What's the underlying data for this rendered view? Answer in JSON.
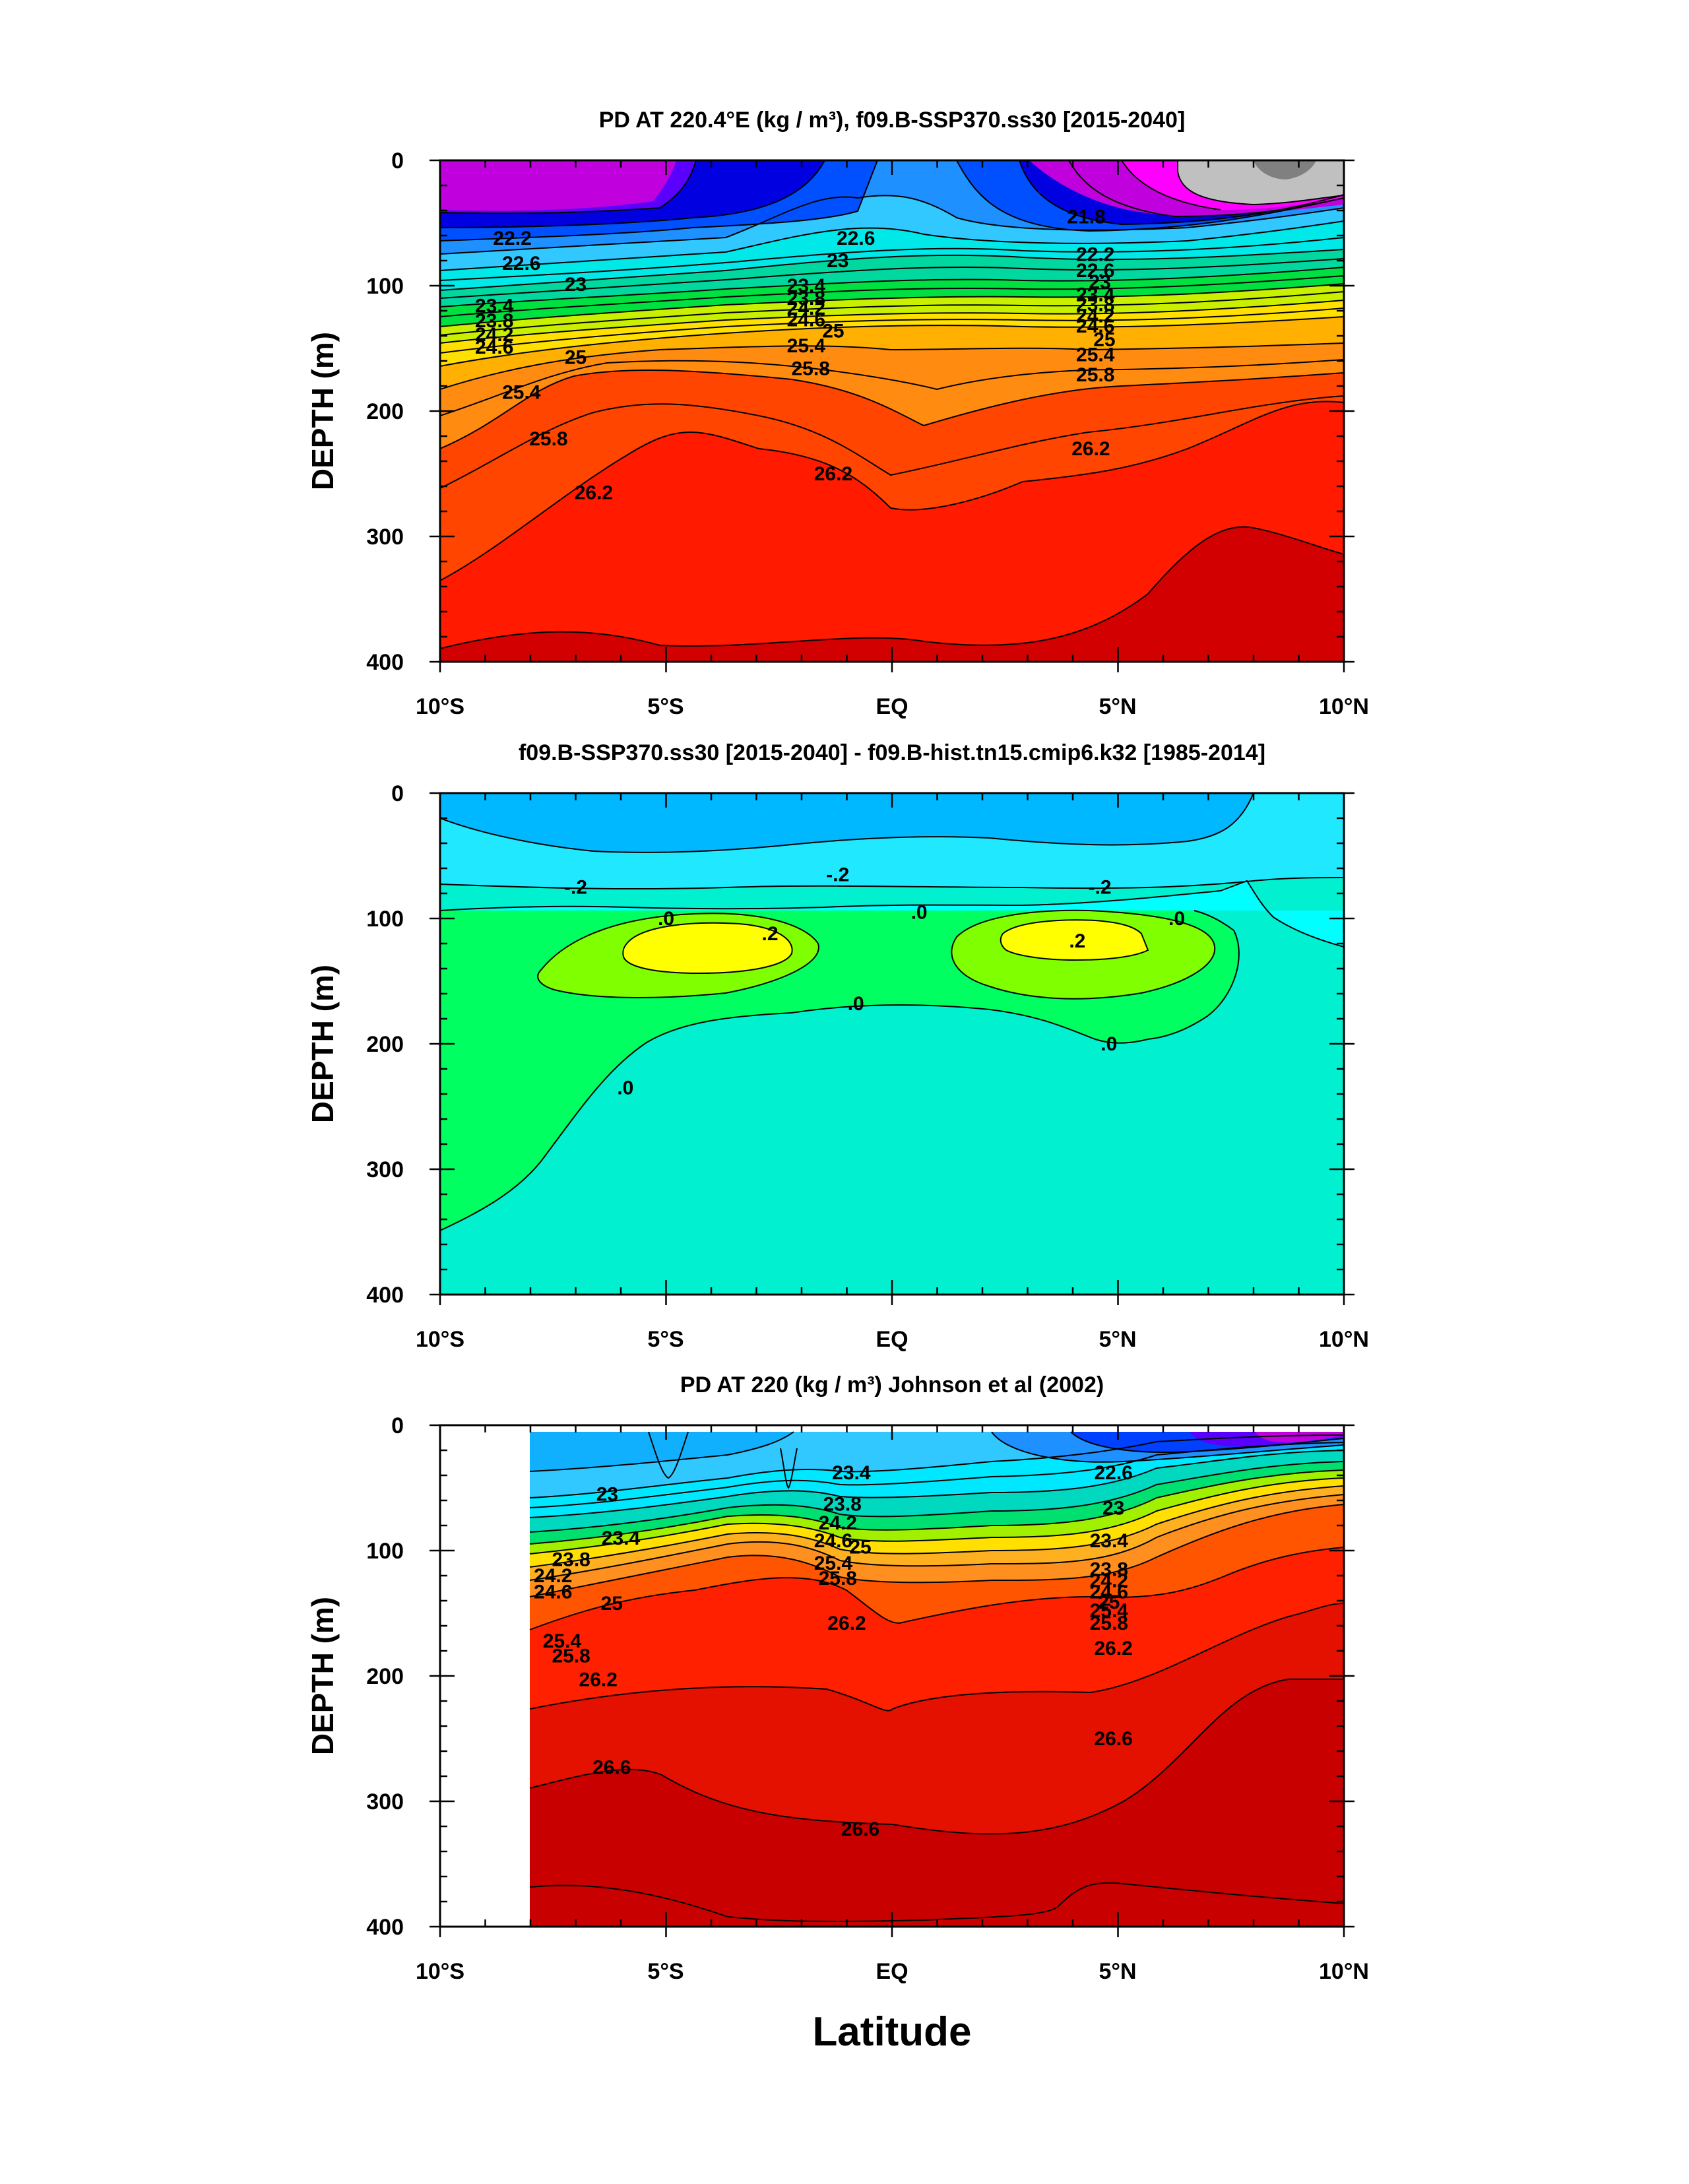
{
  "chart_data": [
    {
      "type": "heatmap",
      "title": "PD AT 220.4°E (kg / m³), f09.B-SSP370.ss30 [2015-2040]",
      "ylabel": "DEPTH (m)",
      "xlabel": "",
      "xlim": [
        -10,
        10
      ],
      "ylim": [
        400,
        0
      ],
      "x_ticks": [
        "10°S",
        "5°S",
        "EQ",
        "5°N",
        "10°N"
      ],
      "y_ticks": [
        "0",
        "100",
        "200",
        "300",
        "400"
      ],
      "data_start_lat": -10,
      "contour_labels": [
        {
          "text": "22.2",
          "lat": -8.4,
          "depth": 62
        },
        {
          "text": "22.6",
          "lat": -8.2,
          "depth": 82
        },
        {
          "text": "23",
          "lat": -7.0,
          "depth": 99
        },
        {
          "text": "23.4",
          "lat": -8.8,
          "depth": 116
        },
        {
          "text": "23.8",
          "lat": -8.8,
          "depth": 128
        },
        {
          "text": "24.2",
          "lat": -8.8,
          "depth": 139
        },
        {
          "text": "24.6",
          "lat": -8.8,
          "depth": 149
        },
        {
          "text": "25",
          "lat": -7.0,
          "depth": 157
        },
        {
          "text": "25.4",
          "lat": -8.2,
          "depth": 185
        },
        {
          "text": "25.8",
          "lat": -7.6,
          "depth": 222
        },
        {
          "text": "26.2",
          "lat": -6.6,
          "depth": 265
        },
        {
          "text": "22.6",
          "lat": -0.8,
          "depth": 62
        },
        {
          "text": "23",
          "lat": -1.2,
          "depth": 80
        },
        {
          "text": "23.4",
          "lat": -1.9,
          "depth": 100
        },
        {
          "text": "23.8",
          "lat": -1.9,
          "depth": 110
        },
        {
          "text": "24.2",
          "lat": -1.9,
          "depth": 118
        },
        {
          "text": "24.6",
          "lat": -1.9,
          "depth": 127
        },
        {
          "text": "25",
          "lat": -1.3,
          "depth": 136
        },
        {
          "text": "25.4",
          "lat": -1.9,
          "depth": 148
        },
        {
          "text": "25.8",
          "lat": -1.8,
          "depth": 166
        },
        {
          "text": "26.2",
          "lat": -1.3,
          "depth": 250
        },
        {
          "text": "21.8",
          "lat": 4.3,
          "depth": 45
        },
        {
          "text": "22.2",
          "lat": 4.5,
          "depth": 75
        },
        {
          "text": "22.6",
          "lat": 4.5,
          "depth": 88
        },
        {
          "text": "23",
          "lat": 4.6,
          "depth": 97
        },
        {
          "text": "23.4",
          "lat": 4.5,
          "depth": 107
        },
        {
          "text": "23.8",
          "lat": 4.5,
          "depth": 115
        },
        {
          "text": "24.2",
          "lat": 4.5,
          "depth": 124
        },
        {
          "text": "24.6",
          "lat": 4.5,
          "depth": 132
        },
        {
          "text": "25",
          "lat": 4.7,
          "depth": 143
        },
        {
          "text": "25.4",
          "lat": 4.5,
          "depth": 155
        },
        {
          "text": "25.8",
          "lat": 4.5,
          "depth": 171
        },
        {
          "text": "26.2",
          "lat": 4.4,
          "depth": 230
        }
      ]
    },
    {
      "type": "heatmap",
      "title": "f09.B-SSP370.ss30 [2015-2040] - f09.B-hist.tn15.cmip6.k32 [1985-2014]",
      "ylabel": "DEPTH (m)",
      "xlabel": "",
      "xlim": [
        -10,
        10
      ],
      "ylim": [
        400,
        0
      ],
      "x_ticks": [
        "10°S",
        "5°S",
        "EQ",
        "5°N",
        "10°N"
      ],
      "y_ticks": [
        "0",
        "100",
        "200",
        "300",
        "400"
      ],
      "data_start_lat": -10,
      "contour_labels": [
        {
          "text": "-.2",
          "lat": -7.0,
          "depth": 75
        },
        {
          "text": "-.2",
          "lat": -1.2,
          "depth": 65
        },
        {
          "text": "-.2",
          "lat": 4.6,
          "depth": 75
        },
        {
          "text": ".0",
          "lat": -5.0,
          "depth": 100
        },
        {
          "text": ".0",
          "lat": 0.6,
          "depth": 95
        },
        {
          "text": ".0",
          "lat": 6.3,
          "depth": 100
        },
        {
          "text": ".2",
          "lat": -2.7,
          "depth": 112
        },
        {
          "text": ".2",
          "lat": 4.1,
          "depth": 118
        },
        {
          "text": ".0",
          "lat": -0.8,
          "depth": 168
        },
        {
          "text": ".0",
          "lat": 4.8,
          "depth": 200
        },
        {
          "text": ".0",
          "lat": -5.9,
          "depth": 235
        }
      ]
    },
    {
      "type": "heatmap",
      "title": "PD AT 220 (kg / m³) Johnson et al (2002)",
      "ylabel": "DEPTH (m)",
      "xlabel": "Latitude",
      "xlim": [
        -10,
        10
      ],
      "ylim": [
        400,
        0
      ],
      "x_ticks": [
        "10°S",
        "5°S",
        "EQ",
        "5°N",
        "10°N"
      ],
      "y_ticks": [
        "0",
        "100",
        "200",
        "300",
        "400"
      ],
      "data_start_lat": -8,
      "contour_labels": [
        {
          "text": "23",
          "lat": -6.3,
          "depth": 55
        },
        {
          "text": "23.4",
          "lat": -6.0,
          "depth": 90
        },
        {
          "text": "23.8",
          "lat": -7.1,
          "depth": 107
        },
        {
          "text": "24.2",
          "lat": -7.5,
          "depth": 120
        },
        {
          "text": "24.6",
          "lat": -7.5,
          "depth": 133
        },
        {
          "text": "25",
          "lat": -6.2,
          "depth": 142
        },
        {
          "text": "25.4",
          "lat": -7.3,
          "depth": 172
        },
        {
          "text": "25.8",
          "lat": -7.1,
          "depth": 184
        },
        {
          "text": "26.2",
          "lat": -6.5,
          "depth": 203
        },
        {
          "text": "26.6",
          "lat": -6.2,
          "depth": 273
        },
        {
          "text": "23.4",
          "lat": -0.9,
          "depth": 38
        },
        {
          "text": "23.8",
          "lat": -1.1,
          "depth": 63
        },
        {
          "text": "24.2",
          "lat": -1.2,
          "depth": 78
        },
        {
          "text": "24.6",
          "lat": -1.3,
          "depth": 92
        },
        {
          "text": "25",
          "lat": -0.7,
          "depth": 97
        },
        {
          "text": "25.4",
          "lat": -1.3,
          "depth": 110
        },
        {
          "text": "25.8",
          "lat": -1.2,
          "depth": 122
        },
        {
          "text": "26.2",
          "lat": -1.0,
          "depth": 158
        },
        {
          "text": "26.6",
          "lat": -0.7,
          "depth": 322
        },
        {
          "text": "22.6",
          "lat": 4.9,
          "depth": 38
        },
        {
          "text": "23",
          "lat": 4.9,
          "depth": 66
        },
        {
          "text": "23.4",
          "lat": 4.8,
          "depth": 92
        },
        {
          "text": "23.8",
          "lat": 4.8,
          "depth": 115
        },
        {
          "text": "24.2",
          "lat": 4.8,
          "depth": 124
        },
        {
          "text": "24.6",
          "lat": 4.8,
          "depth": 133
        },
        {
          "text": "25",
          "lat": 4.8,
          "depth": 141
        },
        {
          "text": "25.4",
          "lat": 4.8,
          "depth": 148
        },
        {
          "text": "25.8",
          "lat": 4.8,
          "depth": 158
        },
        {
          "text": "26.2",
          "lat": 4.9,
          "depth": 178
        },
        {
          "text": "26.6",
          "lat": 4.9,
          "depth": 250
        }
      ]
    }
  ]
}
